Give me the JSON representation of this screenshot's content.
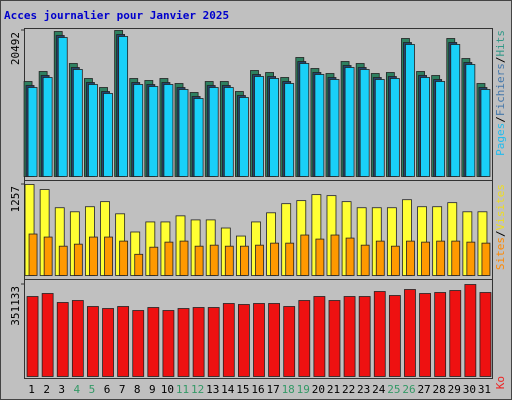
{
  "chart_data": [
    {
      "type": "bar",
      "title": "Acces journalier pour Janvier 2025",
      "legend_separator": "/",
      "ylim": [
        0,
        20492
      ],
      "yticks": [
        20492
      ],
      "series": [
        {
          "name": "Hits",
          "color": "#2e8060",
          "label_color": "#339988",
          "values": [
            13334,
            14738,
            20352,
            15861,
            13755,
            12492,
            20492,
            13755,
            13474,
            13755,
            13053,
            11790,
            13334,
            13334,
            11931,
            14878,
            14597,
            13896,
            16703,
            15159,
            14457,
            16141,
            15861,
            14457,
            14597,
            19370,
            14738,
            14176,
            19370,
            16562,
            13053
          ]
        },
        {
          "name": "Fichiers",
          "color": "#22446e",
          "label_color": "#4477aa",
          "values": [
            12774,
            14180,
            19790,
            15300,
            13195,
            11930,
            19935,
            13190,
            12910,
            13190,
            12490,
            11230,
            12770,
            12775,
            11370,
            14315,
            14035,
            13335,
            16140,
            14600,
            13895,
            15580,
            15300,
            13895,
            14035,
            18805,
            14180,
            13615,
            18810,
            16000,
            12490
          ]
        },
        {
          "name": "Pages",
          "color": "#19d0f8",
          "label_color": "#22bbee",
          "values": [
            12494,
            13898,
            19512,
            15021,
            12915,
            11652,
            19652,
            12915,
            12634,
            12915,
            12213,
            10950,
            12494,
            12494,
            11091,
            14038,
            13757,
            13056,
            15863,
            14319,
            13617,
            15301,
            15021,
            13617,
            13757,
            18530,
            13898,
            13336,
            18530,
            15722,
            12213
          ]
        }
      ]
    },
    {
      "type": "bar",
      "legend_separator": "/",
      "ylim": [
        0,
        1257
      ],
      "yticks": [
        1257
      ],
      "series": [
        {
          "name": "Visites",
          "color": "#ffff33",
          "label_color": "#eedd22",
          "values": [
            1257,
            1187,
            936,
            880,
            950,
            1020,
            852,
            601,
            740,
            740,
            824,
            768,
            768,
            656,
            545,
            740,
            866,
            992,
            1034,
            1117,
            1103,
            1020,
            936,
            936,
            936,
            1047,
            950,
            950,
            1006,
            880,
            880
          ]
        },
        {
          "name": "Sites",
          "color": "#ff9900",
          "label_color": "#ff8800",
          "values": [
            573,
            531,
            405,
            433,
            531,
            531,
            475,
            293,
            391,
            461,
            475,
            405,
            419,
            405,
            405,
            419,
            447,
            447,
            559,
            503,
            559,
            517,
            419,
            475,
            405,
            475,
            461,
            475,
            475,
            461,
            447
          ]
        }
      ]
    },
    {
      "type": "bar",
      "ylim": [
        0,
        351133
      ],
      "yticks": [
        351133
      ],
      "categories": [
        "1",
        "2",
        "3",
        "4",
        "5",
        "6",
        "7",
        "8",
        "9",
        "10",
        "11",
        "12",
        "13",
        "14",
        "15",
        "16",
        "17",
        "18",
        "19",
        "20",
        "21",
        "22",
        "23",
        "24",
        "25",
        "26",
        "27",
        "28",
        "29",
        "30",
        "31"
      ],
      "category_colors": [
        "#000",
        "#000",
        "#000",
        "#339966",
        "#339966",
        "#000",
        "#000",
        "#000",
        "#000",
        "#000",
        "#339966",
        "#339966",
        "#000",
        "#000",
        "#000",
        "#000",
        "#000",
        "#339966",
        "#339966",
        "#000",
        "#000",
        "#000",
        "#000",
        "#000",
        "#339966",
        "#339966",
        "#000",
        "#000",
        "#000",
        "#000",
        "#000"
      ],
      "series": [
        {
          "name": "Ko",
          "color": "#ee1111",
          "label_color": "#ee2222",
          "values": [
            305333,
            316789,
            282442,
            290072,
            267167,
            259533,
            267167,
            251900,
            263355,
            251900,
            259533,
            263355,
            263355,
            278627,
            274810,
            278627,
            278627,
            267167,
            290072,
            305333,
            290072,
            305333,
            305333,
            324423,
            309157,
            332057,
            316789,
            320606,
            328240,
            351133,
            320606
          ]
        }
      ]
    }
  ]
}
